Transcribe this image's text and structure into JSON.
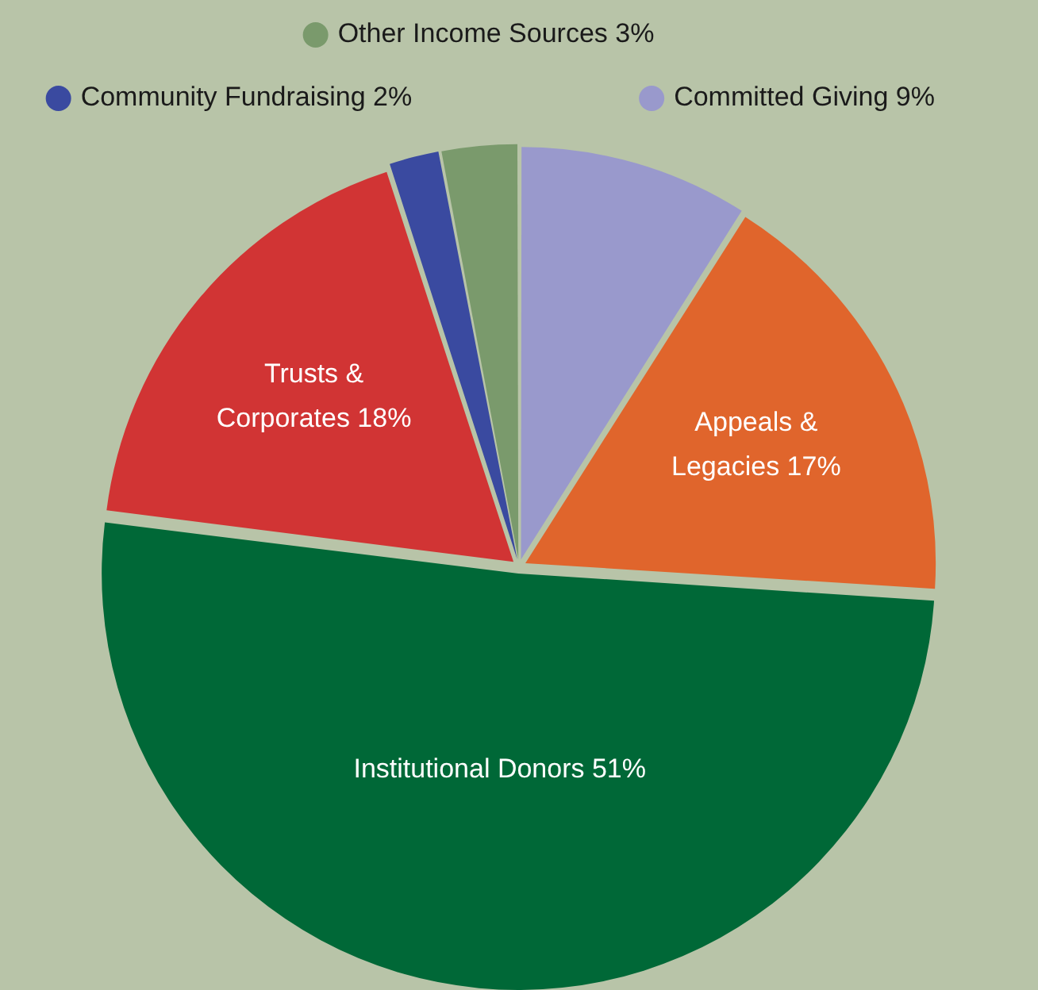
{
  "chart_data": {
    "type": "pie",
    "categories": [
      "Committed Giving",
      "Appeals & Legacies",
      "Institutional Donors",
      "Trusts & Corporates",
      "Community Fundraising",
      "Other Income Sources"
    ],
    "values": [
      9,
      17,
      51,
      18,
      2,
      3
    ],
    "value_labels": [
      "9%",
      "17%",
      "51%",
      "18%",
      "2%",
      "3%"
    ],
    "colors": [
      "#9999cc",
      "#e0652c",
      "#006837",
      "#d13434",
      "#3a4aa0",
      "#7a9a6c"
    ],
    "legend": "top"
  }
}
